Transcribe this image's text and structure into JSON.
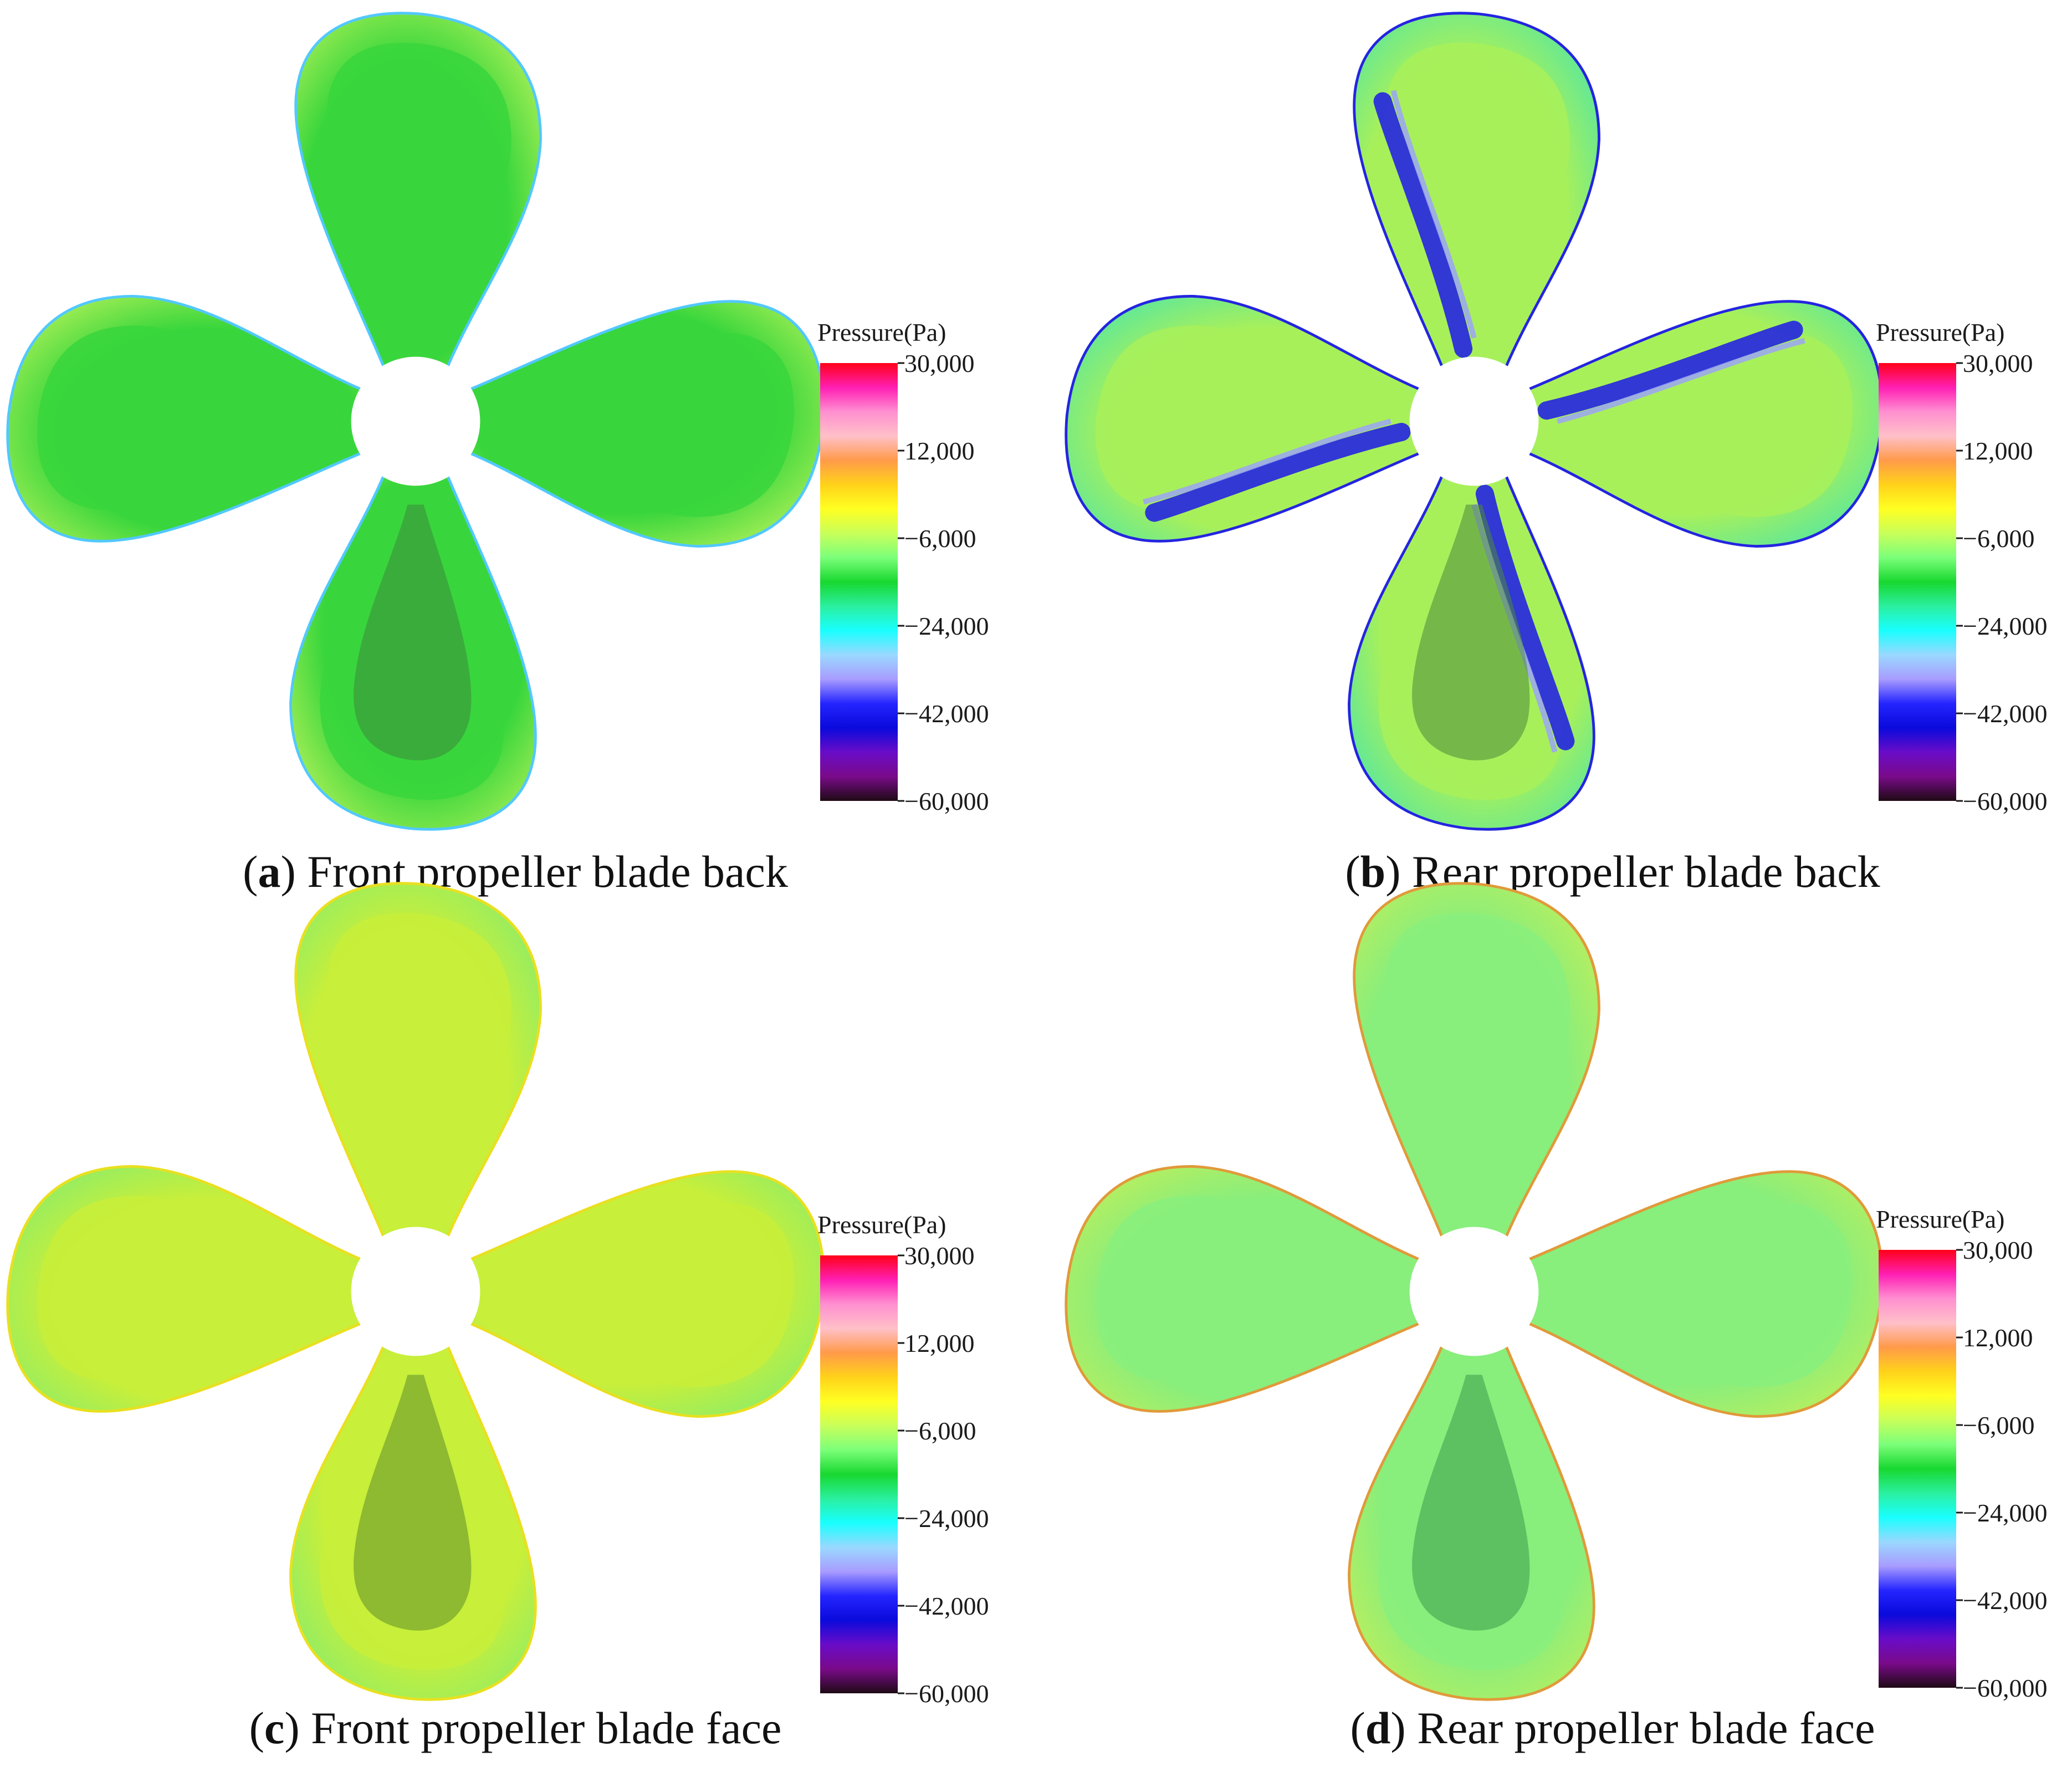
{
  "legend": {
    "title": "Pressure(Pa)",
    "ticks": [
      "30,000",
      "12,000",
      "−6,000",
      "−24,000",
      "−42,000",
      "−60,000"
    ],
    "stops": [
      "#ff0018",
      "#ff1fb4",
      "#ff8fd0",
      "#ffc0c8",
      "#ff9a4a",
      "#ffd21a",
      "#ffff22",
      "#c8ff5a",
      "#7cff7a",
      "#18d830",
      "#2af0a0",
      "#19ffff",
      "#9ad8ff",
      "#a89cff",
      "#2424ff",
      "#0a0adc",
      "#6a0cc8",
      "#7a0a8a",
      "#1e0a14"
    ]
  },
  "panels": [
    {
      "letter": "a",
      "caption": "Front propeller blade back",
      "colors": {
        "main": "#38d63c",
        "edge": "#b8f25a",
        "rim": "#52c8ff",
        "dark": "#3c8a3c"
      }
    },
    {
      "letter": "b",
      "caption": "Rear propeller blade back",
      "colors": {
        "main": "#a8f05a",
        "edge": "#4ee6a8",
        "rim": "#2424e0",
        "dark": "#4a8a3c"
      }
    },
    {
      "letter": "c",
      "caption": "Front propeller blade face",
      "colors": {
        "main": "#c8ef3a",
        "edge": "#88ec6c",
        "rim": "#e8e020",
        "dark": "#5e8e2c"
      }
    },
    {
      "letter": "d",
      "caption": "Rear propeller blade face",
      "colors": {
        "main": "#88ee7c",
        "edge": "#c0ef5a",
        "rim": "#e09a3a",
        "dark": "#3a9a4c"
      }
    }
  ]
}
